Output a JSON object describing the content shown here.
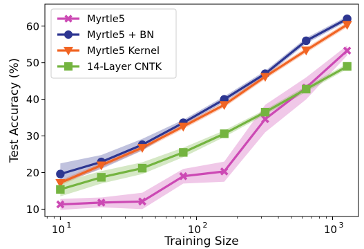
{
  "chart_data": {
    "type": "line",
    "xlabel": "Training Size",
    "ylabel": "Test Accuracy (%)",
    "xscale": "log",
    "xlim": [
      7.7,
      1550
    ],
    "ylim": [
      8,
      66
    ],
    "x_ticks": [
      10,
      100,
      1000
    ],
    "x_tick_labels": [
      {
        "base": "10",
        "exp": "1"
      },
      {
        "base": "10",
        "exp": "2"
      },
      {
        "base": "10",
        "exp": "3"
      }
    ],
    "y_ticks": [
      10,
      20,
      30,
      40,
      50,
      60
    ],
    "grid": false,
    "legend_position": "upper-left",
    "x": [
      10,
      20,
      40,
      80,
      160,
      320,
      640,
      1280
    ],
    "series": [
      {
        "name": "Myrtle5",
        "color": "#cc49b4",
        "marker": "x",
        "values": [
          11.3,
          11.8,
          12.1,
          19.0,
          20.3,
          34.6,
          43.2,
          53.3
        ],
        "lower": [
          9.8,
          10.5,
          10.0,
          17.0,
          17.5,
          31.0,
          40.0,
          52.0
        ],
        "upper": [
          12.8,
          13.2,
          14.5,
          21.0,
          23.0,
          38.5,
          46.0,
          54.7
        ]
      },
      {
        "name": "Myrtle5 + BN",
        "color": "#2d3691",
        "marker": "circle",
        "values": [
          19.6,
          22.9,
          27.6,
          33.6,
          40.0,
          47.0,
          56.0,
          62.0
        ],
        "lower": [
          17.0,
          21.0,
          26.0,
          32.8,
          39.2,
          46.2,
          55.2,
          61.3
        ],
        "upper": [
          22.5,
          24.8,
          29.2,
          34.4,
          40.8,
          47.8,
          56.8,
          62.7
        ]
      },
      {
        "name": "Myrtle5 Kernel",
        "color": "#f16423",
        "marker": "triangle-down",
        "values": [
          17.2,
          22.0,
          26.8,
          32.6,
          38.5,
          46.2,
          53.4,
          60.4
        ],
        "lower": [
          16.5,
          21.3,
          26.1,
          31.9,
          37.8,
          45.5,
          52.7,
          59.7
        ],
        "upper": [
          17.9,
          22.7,
          27.5,
          33.3,
          39.2,
          46.9,
          54.1,
          61.1
        ]
      },
      {
        "name": "14-Layer CNTK",
        "color": "#74b440",
        "marker": "square",
        "values": [
          15.4,
          18.7,
          21.2,
          25.5,
          30.6,
          36.5,
          42.8,
          49.0
        ],
        "lower": [
          13.5,
          17.0,
          19.6,
          24.2,
          29.7,
          35.8,
          42.0,
          48.3
        ],
        "upper": [
          17.3,
          20.4,
          22.8,
          26.8,
          31.5,
          37.2,
          43.6,
          49.7
        ]
      }
    ]
  }
}
